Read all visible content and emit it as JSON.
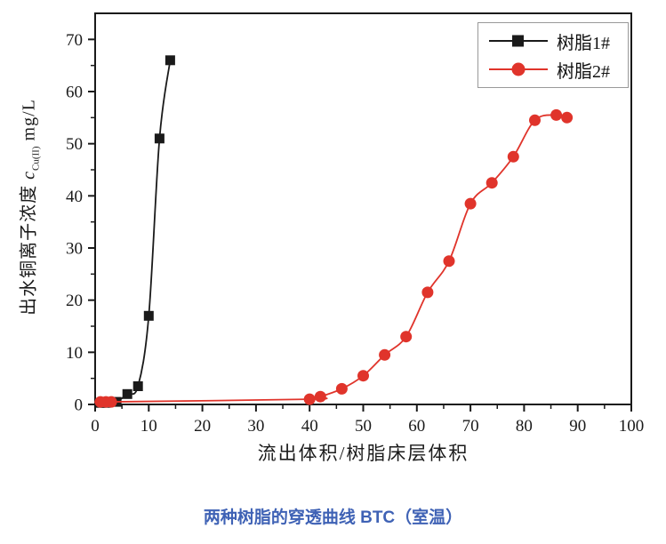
{
  "caption": {
    "text": "两种树脂的穿透曲线 BTC（室温）",
    "color": "#3f62b5"
  },
  "chart_data": {
    "type": "line",
    "title": "",
    "xlabel": "流出体积/树脂床层体积",
    "ylabel": {
      "prefix": "出水铜离子浓度 ",
      "symbol": "c",
      "subscript": "Cu(II)",
      "suffix": " mg/L"
    },
    "xlim": [
      0,
      100
    ],
    "ylim": [
      0,
      75
    ],
    "x_ticks": [
      0,
      10,
      20,
      30,
      40,
      50,
      60,
      70,
      80,
      90,
      100
    ],
    "y_ticks": [
      0,
      10,
      20,
      30,
      40,
      50,
      60,
      70
    ],
    "minor_tick_step": 5,
    "grid": false,
    "axis_color": "#1a1a1a",
    "legend_position": "top-right",
    "series": [
      {
        "name": "树脂1#",
        "color": "#1a1a1a",
        "marker": "square",
        "points": [
          [
            1,
            0.3
          ],
          [
            2,
            0.3
          ],
          [
            4,
            0.5
          ],
          [
            6,
            2
          ],
          [
            8,
            3.5
          ],
          [
            10,
            17
          ],
          [
            12,
            51
          ],
          [
            14,
            66
          ]
        ]
      },
      {
        "name": "树脂2#",
        "color": "#e0342b",
        "marker": "circle",
        "points": [
          [
            1,
            0.5
          ],
          [
            2,
            0.5
          ],
          [
            3,
            0.5
          ],
          [
            40,
            1
          ],
          [
            42,
            1.5
          ],
          [
            46,
            3
          ],
          [
            50,
            5.5
          ],
          [
            54,
            9.5
          ],
          [
            58,
            13
          ],
          [
            62,
            21.5
          ],
          [
            66,
            27.5
          ],
          [
            70,
            38.5
          ],
          [
            74,
            42.5
          ],
          [
            78,
            47.5
          ],
          [
            82,
            54.5
          ],
          [
            86,
            55.5
          ],
          [
            88,
            55
          ]
        ]
      }
    ]
  }
}
